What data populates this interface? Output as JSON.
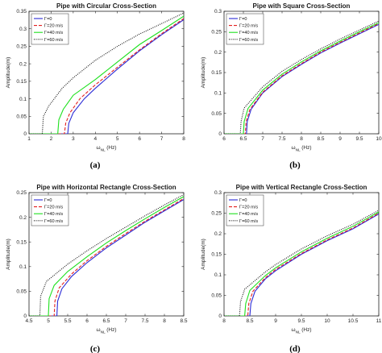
{
  "chart_data": [
    {
      "type": "line",
      "title": "Pipe with Circular Cross-Section",
      "panel_label": "(a)",
      "ylabel": "Amplitude(m)",
      "xlabel_main": "ω",
      "xlabel_sub": "NL",
      "xlabel_unit": "(Hz)",
      "xlim": [
        1,
        8
      ],
      "ylim": [
        0,
        0.35
      ],
      "xticks": [
        "1",
        "2",
        "3",
        "4",
        "5",
        "6",
        "7",
        "8"
      ],
      "yticks": [
        "0",
        "0.05",
        "0.1",
        "0.15",
        "0.2",
        "0.25",
        "0.3",
        "0.35"
      ],
      "xtick_values": [
        1,
        2,
        3,
        4,
        5,
        6,
        7,
        8
      ],
      "ytick_values": [
        0,
        0.05,
        0.1,
        0.15,
        0.2,
        0.25,
        0.3,
        0.35
      ],
      "legend_position": "top-left",
      "series": [
        {
          "name": "Γ=0",
          "color": "#2b2bd6",
          "dash": "solid",
          "x0": 2.75,
          "points": [
            [
              2.75,
              0
            ],
            [
              2.8,
              0.03
            ],
            [
              3,
              0.06
            ],
            [
              3.5,
              0.1
            ],
            [
              4,
              0.13
            ],
            [
              5,
              0.185
            ],
            [
              6,
              0.237
            ],
            [
              7,
              0.283
            ],
            [
              8,
              0.326
            ]
          ]
        },
        {
          "name": "Γ=20 m/s",
          "color": "#e32020",
          "dash": "dashed",
          "x0": 2.6,
          "points": [
            [
              2.6,
              0
            ],
            [
              2.66,
              0.03
            ],
            [
              2.85,
              0.06
            ],
            [
              3.3,
              0.1
            ],
            [
              4,
              0.14
            ],
            [
              5,
              0.19
            ],
            [
              6,
              0.24
            ],
            [
              7,
              0.286
            ],
            [
              8,
              0.329
            ]
          ]
        },
        {
          "name": "Γ=40 m/s",
          "color": "#1ee01e",
          "dash": "solid",
          "x0": 2.3,
          "points": [
            [
              2.3,
              0
            ],
            [
              2.35,
              0.04
            ],
            [
              2.55,
              0.07
            ],
            [
              3,
              0.11
            ],
            [
              4,
              0.155
            ],
            [
              5,
              0.205
            ],
            [
              6,
              0.255
            ],
            [
              7,
              0.295
            ],
            [
              8,
              0.336
            ]
          ]
        },
        {
          "name": "Γ=60 m/s",
          "color": "#111111",
          "dash": "dotted",
          "x0": 1.6,
          "points": [
            [
              1.6,
              0
            ],
            [
              1.65,
              0.05
            ],
            [
              1.9,
              0.08
            ],
            [
              2.5,
              0.13
            ],
            [
              3,
              0.16
            ],
            [
              4,
              0.21
            ],
            [
              5,
              0.25
            ],
            [
              6,
              0.285
            ],
            [
              7,
              0.315
            ],
            [
              8,
              0.345
            ]
          ]
        }
      ]
    },
    {
      "type": "line",
      "title": "Pipe with Square Cross-Section",
      "panel_label": "(b)",
      "ylabel": "Amplitude(m)",
      "xlabel_main": "ω",
      "xlabel_sub": "NL",
      "xlabel_unit": "(Hz)",
      "xlim": [
        6,
        10
      ],
      "ylim": [
        0,
        0.3
      ],
      "xticks": [
        "6",
        "6.5",
        "7",
        "7.5",
        "8",
        "8.5",
        "9",
        "9.5",
        "10"
      ],
      "yticks": [
        "0",
        "0.05",
        "0.1",
        "0.15",
        "0.2",
        "0.25",
        "0.3"
      ],
      "xtick_values": [
        6,
        6.5,
        7,
        7.5,
        8,
        8.5,
        9,
        9.5,
        10
      ],
      "ytick_values": [
        0,
        0.05,
        0.1,
        0.15,
        0.2,
        0.25,
        0.3
      ],
      "legend_position": "top-left",
      "series": [
        {
          "name": "Γ=0",
          "color": "#2b2bd6",
          "dash": "solid",
          "x0": 6.58,
          "points": [
            [
              6.58,
              0
            ],
            [
              6.6,
              0.03
            ],
            [
              6.7,
              0.06
            ],
            [
              7,
              0.1
            ],
            [
              7.5,
              0.14
            ],
            [
              8,
              0.17
            ],
            [
              8.5,
              0.198
            ],
            [
              9,
              0.222
            ],
            [
              9.5,
              0.245
            ],
            [
              10,
              0.268
            ]
          ]
        },
        {
          "name": "Γ=20 m/s",
          "color": "#e32020",
          "dash": "dashed",
          "x0": 6.55,
          "points": [
            [
              6.55,
              0
            ],
            [
              6.57,
              0.03
            ],
            [
              6.67,
              0.06
            ],
            [
              7,
              0.102
            ],
            [
              7.5,
              0.142
            ],
            [
              8,
              0.172
            ],
            [
              8.5,
              0.2
            ],
            [
              9,
              0.224
            ],
            [
              9.5,
              0.247
            ],
            [
              10,
              0.27
            ]
          ]
        },
        {
          "name": "Γ=40 m/s",
          "color": "#1ee01e",
          "dash": "solid",
          "x0": 6.5,
          "points": [
            [
              6.5,
              0
            ],
            [
              6.52,
              0.03
            ],
            [
              6.62,
              0.062
            ],
            [
              7,
              0.107
            ],
            [
              7.5,
              0.146
            ],
            [
              8,
              0.176
            ],
            [
              8.5,
              0.203
            ],
            [
              9,
              0.227
            ],
            [
              9.5,
              0.25
            ],
            [
              10,
              0.272
            ]
          ]
        },
        {
          "name": "Γ=60 m/s",
          "color": "#111111",
          "dash": "dotted",
          "x0": 6.42,
          "points": [
            [
              6.42,
              0
            ],
            [
              6.44,
              0.03
            ],
            [
              6.52,
              0.063
            ],
            [
              7,
              0.115
            ],
            [
              7.5,
              0.153
            ],
            [
              8,
              0.182
            ],
            [
              8.5,
              0.208
            ],
            [
              9,
              0.232
            ],
            [
              9.5,
              0.254
            ],
            [
              10,
              0.276
            ]
          ]
        }
      ]
    },
    {
      "type": "line",
      "title": "Pipe with Horizontal Rectangle Cross-Section",
      "panel_label": "(c)",
      "ylabel": "Amplitude(m)",
      "xlabel_main": "ω",
      "xlabel_sub": "NL",
      "xlabel_unit": "(Hz)",
      "xlim": [
        4.5,
        8.5
      ],
      "ylim": [
        0,
        0.25
      ],
      "xticks": [
        "4.5",
        "5",
        "5.5",
        "6",
        "6.5",
        "7",
        "7.5",
        "8",
        "8.5"
      ],
      "yticks": [
        "0",
        "0.05",
        "0.1",
        "0.15",
        "0.2",
        "0.25"
      ],
      "xtick_values": [
        4.5,
        5,
        5.5,
        6,
        6.5,
        7,
        7.5,
        8,
        8.5
      ],
      "ytick_values": [
        0,
        0.05,
        0.1,
        0.15,
        0.2,
        0.25
      ],
      "legend_position": "top-left",
      "series": [
        {
          "name": "Γ=0",
          "color": "#2b2bd6",
          "dash": "solid",
          "x0": 5.22,
          "points": [
            [
              5.22,
              0
            ],
            [
              5.24,
              0.03
            ],
            [
              5.35,
              0.055
            ],
            [
              5.6,
              0.08
            ],
            [
              6,
              0.108
            ],
            [
              6.5,
              0.138
            ],
            [
              7,
              0.164
            ],
            [
              7.5,
              0.19
            ],
            [
              8,
              0.213
            ],
            [
              8.5,
              0.236
            ]
          ]
        },
        {
          "name": "Γ=20 m/s",
          "color": "#e32020",
          "dash": "dashed",
          "x0": 5.15,
          "points": [
            [
              5.15,
              0
            ],
            [
              5.17,
              0.03
            ],
            [
              5.28,
              0.057
            ],
            [
              5.6,
              0.085
            ],
            [
              6,
              0.112
            ],
            [
              6.5,
              0.141
            ],
            [
              7,
              0.167
            ],
            [
              7.5,
              0.192
            ],
            [
              8,
              0.215
            ],
            [
              8.5,
              0.238
            ]
          ]
        },
        {
          "name": "Γ=40 m/s",
          "color": "#1ee01e",
          "dash": "solid",
          "x0": 5.0,
          "points": [
            [
              5.0,
              0
            ],
            [
              5.02,
              0.035
            ],
            [
              5.15,
              0.062
            ],
            [
              5.5,
              0.09
            ],
            [
              6,
              0.12
            ],
            [
              6.5,
              0.148
            ],
            [
              7,
              0.173
            ],
            [
              7.5,
              0.197
            ],
            [
              8,
              0.22
            ],
            [
              8.5,
              0.242
            ]
          ]
        },
        {
          "name": "Γ=60 m/s",
          "color": "#111111",
          "dash": "dotted",
          "x0": 4.78,
          "points": [
            [
              4.78,
              0
            ],
            [
              4.8,
              0.04
            ],
            [
              4.95,
              0.07
            ],
            [
              5.5,
              0.105
            ],
            [
              6,
              0.132
            ],
            [
              6.5,
              0.157
            ],
            [
              7,
              0.18
            ],
            [
              7.5,
              0.203
            ],
            [
              8,
              0.225
            ],
            [
              8.5,
              0.246
            ]
          ]
        }
      ]
    },
    {
      "type": "line",
      "title": "Pipe with Vertical Rectangle Cross-Section",
      "panel_label": "(d)",
      "ylabel": "Amplitude(m)",
      "xlabel_main": "ω",
      "xlabel_sub": "NL",
      "xlabel_unit": "(Hz)",
      "xlim": [
        8,
        11
      ],
      "ylim": [
        0,
        0.3
      ],
      "xticks": [
        "8",
        "8.5",
        "9",
        "9.5",
        "10",
        "10.5",
        "11"
      ],
      "yticks": [
        "0",
        "0.05",
        "0.1",
        "0.15",
        "0.2",
        "0.25",
        "0.3"
      ],
      "xtick_values": [
        8,
        8.5,
        9,
        9.5,
        10,
        10.5,
        11
      ],
      "ytick_values": [
        0,
        0.05,
        0.1,
        0.15,
        0.2,
        0.25,
        0.3
      ],
      "legend_position": "top-left",
      "series": [
        {
          "name": "Γ=0",
          "color": "#2b2bd6",
          "dash": "solid",
          "x0": 8.5,
          "points": [
            [
              8.5,
              0
            ],
            [
              8.52,
              0.03
            ],
            [
              8.6,
              0.06
            ],
            [
              8.8,
              0.09
            ],
            [
              9,
              0.11
            ],
            [
              9.5,
              0.15
            ],
            [
              10,
              0.183
            ],
            [
              10.5,
              0.212
            ],
            [
              11,
              0.248
            ]
          ]
        },
        {
          "name": "Γ=20 m/s",
          "color": "#e32020",
          "dash": "dashed",
          "x0": 8.46,
          "points": [
            [
              8.46,
              0
            ],
            [
              8.48,
              0.03
            ],
            [
              8.56,
              0.06
            ],
            [
              8.8,
              0.093
            ],
            [
              9,
              0.113
            ],
            [
              9.5,
              0.152
            ],
            [
              10,
              0.185
            ],
            [
              10.5,
              0.214
            ],
            [
              11,
              0.25
            ]
          ]
        },
        {
          "name": "Γ=40 m/s",
          "color": "#1ee01e",
          "dash": "solid",
          "x0": 8.4,
          "points": [
            [
              8.4,
              0
            ],
            [
              8.42,
              0.03
            ],
            [
              8.5,
              0.062
            ],
            [
              8.8,
              0.098
            ],
            [
              9,
              0.117
            ],
            [
              9.5,
              0.156
            ],
            [
              10,
              0.189
            ],
            [
              10.5,
              0.218
            ],
            [
              11,
              0.253
            ]
          ]
        },
        {
          "name": "Γ=60 m/s",
          "color": "#111111",
          "dash": "dotted",
          "x0": 8.3,
          "points": [
            [
              8.3,
              0
            ],
            [
              8.32,
              0.035
            ],
            [
              8.4,
              0.065
            ],
            [
              8.8,
              0.107
            ],
            [
              9,
              0.125
            ],
            [
              9.5,
              0.163
            ],
            [
              10,
              0.195
            ],
            [
              10.5,
              0.223
            ],
            [
              11,
              0.257
            ]
          ]
        }
      ]
    }
  ]
}
